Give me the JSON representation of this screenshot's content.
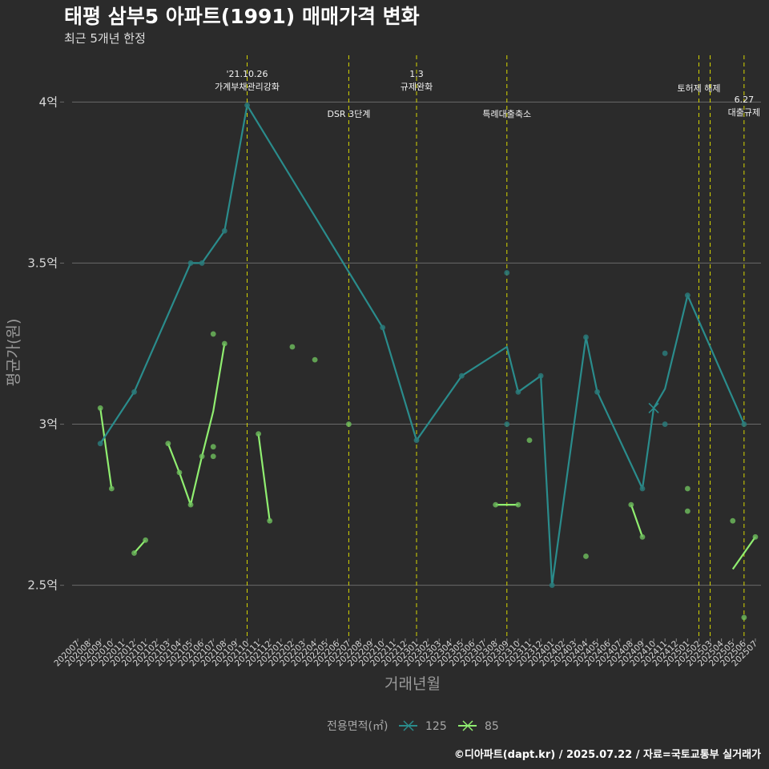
{
  "chart_data": {
    "type": "line",
    "title": "태평 삼부5 아파트(1991) 매매가격 변화",
    "subtitle": "최근 5개년 한정",
    "xlabel": "거래년월",
    "ylabel": "평균가(원)",
    "caption": "©디아파트(dapt.kr) / 2025.07.22 / 자료=국토교통부 실거래가",
    "legend_title": "전용면적(㎡)",
    "legend_position": "bottom",
    "grid": true,
    "y_scale": "억",
    "ylim": [
      2.34,
      4.15
    ],
    "yticks": [
      {
        "value": 2.5,
        "label": "2.5억"
      },
      {
        "value": 3,
        "label": "3억"
      },
      {
        "value": 3.5,
        "label": "3.5억"
      },
      {
        "value": 4,
        "label": "4억"
      }
    ],
    "months": [
      "202007",
      "202008",
      "202009",
      "202010",
      "202011",
      "202012",
      "202101",
      "202102",
      "202103",
      "202104",
      "202105",
      "202106",
      "202107",
      "202108",
      "202109",
      "202110",
      "202111",
      "202112",
      "202201",
      "202202",
      "202203",
      "202204",
      "202205",
      "202206",
      "202207",
      "202208",
      "202209",
      "202210",
      "202211",
      "202212",
      "202301",
      "202302",
      "202303",
      "202304",
      "202305",
      "202306",
      "202307",
      "202308",
      "202309",
      "202310",
      "202311",
      "202312",
      "202401",
      "202402",
      "202403",
      "202404",
      "202405",
      "202406",
      "202407",
      "202408",
      "202409",
      "202410",
      "202411",
      "202412",
      "202501",
      "202502",
      "202503",
      "202504",
      "202505",
      "202506",
      "202507"
    ],
    "series": [
      {
        "name": "125",
        "color": "#2a8c8c",
        "line": [
          [
            "202009",
            2.94
          ],
          [
            "202012",
            3.1
          ],
          [
            "202105",
            3.5
          ],
          [
            "202106",
            3.5
          ],
          [
            "202108",
            3.6
          ],
          [
            "202110",
            3.99
          ],
          [
            "202210",
            3.3
          ],
          [
            "202301",
            2.95
          ],
          [
            "202305",
            3.15
          ],
          [
            "202309",
            3.24
          ],
          [
            "202310",
            3.1
          ],
          [
            "202312",
            3.15
          ],
          [
            "202401",
            2.5
          ],
          [
            "202404",
            3.27
          ],
          [
            "202405",
            3.1
          ],
          [
            "202409",
            2.8
          ],
          [
            "202410",
            3.05
          ],
          [
            "202411",
            3.11
          ],
          [
            "202501",
            3.4
          ],
          [
            "202506",
            3.0
          ]
        ],
        "points": [
          [
            "202009",
            2.94
          ],
          [
            "202012",
            3.1
          ],
          [
            "202105",
            3.5
          ],
          [
            "202106",
            3.5
          ],
          [
            "202108",
            3.6
          ],
          [
            "202110",
            3.99
          ],
          [
            "202210",
            3.3
          ],
          [
            "202301",
            2.95
          ],
          [
            "202305",
            3.15
          ],
          [
            "202309",
            3.47
          ],
          [
            "202309",
            3.0
          ],
          [
            "202310",
            3.1
          ],
          [
            "202312",
            3.15
          ],
          [
            "202401",
            2.5
          ],
          [
            "202404",
            3.27
          ],
          [
            "202405",
            3.1
          ],
          [
            "202409",
            2.8
          ],
          [
            "202411",
            3.22
          ],
          [
            "202411",
            3.0
          ],
          [
            "202501",
            3.4
          ],
          [
            "202506",
            3.0
          ]
        ],
        "marker_x": [
          "202410",
          3.05
        ]
      },
      {
        "name": "85",
        "color": "#90ee70",
        "segments": [
          [
            [
              "202009",
              3.05
            ],
            [
              "202010",
              2.8
            ]
          ],
          [
            [
              "202012",
              2.6
            ],
            [
              "202101",
              2.64
            ]
          ],
          [
            [
              "202103",
              2.94
            ],
            [
              "202104",
              2.85
            ],
            [
              "202105",
              2.75
            ],
            [
              "202106",
              2.9
            ],
            [
              "202107",
              3.04
            ],
            [
              "202108",
              3.25
            ]
          ],
          [
            [
              "202111",
              2.97
            ],
            [
              "202112",
              2.7
            ]
          ],
          [
            [
              "202308",
              2.75
            ],
            [
              "202310",
              2.75
            ]
          ],
          [
            [
              "202408",
              2.75
            ],
            [
              "202409",
              2.65
            ]
          ],
          [
            [
              "202505",
              2.55
            ],
            [
              "202507",
              2.65
            ]
          ]
        ],
        "points": [
          [
            "202009",
            3.05
          ],
          [
            "202010",
            2.8
          ],
          [
            "202012",
            2.6
          ],
          [
            "202101",
            2.64
          ],
          [
            "202103",
            2.94
          ],
          [
            "202104",
            2.85
          ],
          [
            "202105",
            2.75
          ],
          [
            "202106",
            2.9
          ],
          [
            "202107",
            3.28
          ],
          [
            "202107",
            2.93
          ],
          [
            "202107",
            2.9
          ],
          [
            "202108",
            3.25
          ],
          [
            "202111",
            2.97
          ],
          [
            "202112",
            2.7
          ],
          [
            "202202",
            3.24
          ],
          [
            "202204",
            3.2
          ],
          [
            "202207",
            3.0
          ],
          [
            "202308",
            2.75
          ],
          [
            "202310",
            2.75
          ],
          [
            "202311",
            2.95
          ],
          [
            "202404",
            2.59
          ],
          [
            "202408",
            2.75
          ],
          [
            "202409",
            2.65
          ],
          [
            "202501",
            2.8
          ],
          [
            "202501",
            2.73
          ],
          [
            "202505",
            2.7
          ],
          [
            "202506",
            2.4
          ],
          [
            "202507",
            2.65
          ]
        ]
      }
    ],
    "events": [
      {
        "month": "202110",
        "lines": [
          "'21.10.26",
          "가계부채관리강화"
        ],
        "level": "high"
      },
      {
        "month": "202207",
        "lines": [
          "DSR 3단계"
        ],
        "level": "low"
      },
      {
        "month": "202301",
        "lines": [
          "1.3",
          "규제완화"
        ],
        "level": "high"
      },
      {
        "month": "202309",
        "lines": [
          "특례대출축소"
        ],
        "level": "low"
      },
      {
        "month": "202502",
        "lines": [
          "토허제 해제"
        ],
        "level": "mid"
      },
      {
        "month": "202503",
        "lines": [],
        "level": "none"
      },
      {
        "month": "202506",
        "lines": [
          "6.27",
          "대출규제"
        ],
        "level": "right"
      }
    ]
  }
}
